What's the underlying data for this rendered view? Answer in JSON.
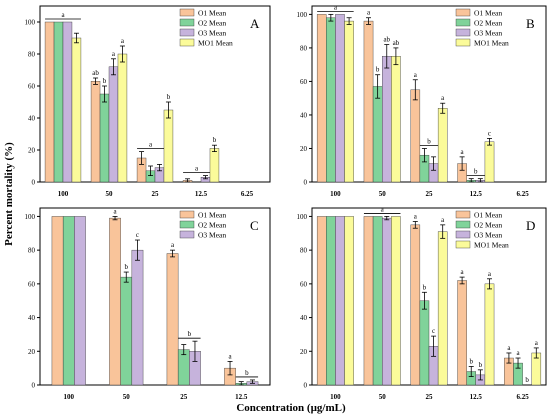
{
  "figure": {
    "ylabel": "Percent mortality (%)",
    "xlabel": "Concentration (µg/mL)"
  },
  "colors": {
    "O1 Mean": "#f9c49a",
    "O2 Mean": "#80d39a",
    "O3 Mean": "#c6b3dc",
    "MO1 Mean": "#fbfb9a"
  },
  "chart_data": [
    {
      "panel": "A",
      "type": "bar",
      "categories": [
        "100",
        "50",
        "25",
        "12.5",
        "6.25"
      ],
      "series": [
        {
          "name": "O1 Mean",
          "values": [
            100,
            63,
            15,
            1,
            0
          ],
          "errors": [
            0,
            2,
            4,
            1,
            0
          ]
        },
        {
          "name": "O2 Mean",
          "values": [
            100,
            55,
            7,
            0,
            0
          ],
          "errors": [
            0,
            5,
            3,
            0,
            0
          ]
        },
        {
          "name": "O3 Mean",
          "values": [
            100,
            72,
            9,
            3,
            0
          ],
          "errors": [
            0,
            5,
            2,
            1,
            0
          ]
        },
        {
          "name": "MO1 Mean",
          "values": [
            90,
            80,
            45,
            21,
            0
          ],
          "errors": [
            3,
            5,
            5,
            2,
            0
          ]
        }
      ],
      "ylim": [
        0,
        110
      ],
      "yticks": [
        0,
        20,
        40,
        60,
        80,
        100
      ],
      "legend": "top-right",
      "annotations": [
        {
          "category": 0,
          "from": 0,
          "to": 3,
          "label": "a"
        },
        {
          "category": 1,
          "series": 0,
          "label": "ab"
        },
        {
          "category": 1,
          "series": 1,
          "label": "b"
        },
        {
          "category": 1,
          "series": 2,
          "label": "a"
        },
        {
          "category": 1,
          "series": 3,
          "label": "a"
        },
        {
          "category": 2,
          "from": 0,
          "to": 2,
          "label": "a"
        },
        {
          "category": 2,
          "series": 3,
          "label": "b"
        },
        {
          "category": 3,
          "from": 0,
          "to": 2,
          "label": "a"
        },
        {
          "category": 3,
          "series": 3,
          "label": "b"
        }
      ]
    },
    {
      "panel": "B",
      "type": "bar",
      "categories": [
        "100",
        "50",
        "25",
        "12.5",
        "6.25"
      ],
      "series": [
        {
          "name": "O1 Mean",
          "values": [
            100,
            96,
            55,
            11,
            0
          ],
          "errors": [
            0,
            2,
            6,
            4,
            0
          ]
        },
        {
          "name": "O2 Mean",
          "values": [
            98,
            57,
            16,
            1,
            0
          ],
          "errors": [
            2,
            7,
            4,
            1,
            0
          ]
        },
        {
          "name": "O3 Mean",
          "values": [
            100,
            75,
            11,
            1,
            0
          ],
          "errors": [
            0,
            7,
            4,
            1,
            0
          ]
        },
        {
          "name": "MO1 Mean",
          "values": [
            96,
            75,
            44,
            24,
            0
          ],
          "errors": [
            2,
            5,
            3,
            2,
            0
          ]
        }
      ],
      "ylim": [
        0,
        105
      ],
      "yticks": [
        0,
        20,
        40,
        60,
        80,
        100
      ],
      "legend": "top-right",
      "annotations": [
        {
          "category": 0,
          "from": 0,
          "to": 3,
          "label": "a"
        },
        {
          "category": 1,
          "series": 0,
          "label": "a"
        },
        {
          "category": 1,
          "series": 1,
          "label": "b"
        },
        {
          "category": 1,
          "series": 2,
          "label": "ab"
        },
        {
          "category": 1,
          "series": 3,
          "label": "ab"
        },
        {
          "category": 2,
          "series": 0,
          "label": "a"
        },
        {
          "category": 2,
          "from": 1,
          "to": 2,
          "label": "b"
        },
        {
          "category": 2,
          "series": 3,
          "label": "a"
        },
        {
          "category": 3,
          "series": 0,
          "label": "a"
        },
        {
          "category": 3,
          "from": 1,
          "to": 2,
          "label": "b"
        },
        {
          "category": 3,
          "series": 3,
          "label": "c"
        }
      ]
    },
    {
      "panel": "C",
      "type": "bar",
      "categories": [
        "100",
        "50",
        "25",
        "12.5"
      ],
      "series": [
        {
          "name": "O1 Mean",
          "values": [
            100,
            99,
            78,
            10
          ],
          "errors": [
            0,
            1,
            2,
            4
          ]
        },
        {
          "name": "O2 Mean",
          "values": [
            100,
            64,
            21,
            1
          ],
          "errors": [
            0,
            3,
            3,
            1
          ]
        },
        {
          "name": "O3 Mean",
          "values": [
            100,
            80,
            20,
            2
          ],
          "errors": [
            0,
            6,
            6,
            1
          ]
        }
      ],
      "ylim": [
        0,
        105
      ],
      "yticks": [
        0,
        20,
        40,
        60,
        80,
        100
      ],
      "legend": "top-right",
      "annotations": [
        {
          "category": 1,
          "series": 0,
          "label": "a"
        },
        {
          "category": 1,
          "series": 1,
          "label": "b"
        },
        {
          "category": 1,
          "series": 2,
          "label": "c"
        },
        {
          "category": 2,
          "series": 0,
          "label": "a"
        },
        {
          "category": 2,
          "from": 1,
          "to": 2,
          "label": "b"
        },
        {
          "category": 3,
          "series": 0,
          "label": "a"
        },
        {
          "category": 3,
          "from": 1,
          "to": 2,
          "label": "b"
        }
      ]
    },
    {
      "panel": "D",
      "type": "bar",
      "categories": [
        "100",
        "50",
        "25",
        "12.5",
        "6.25"
      ],
      "series": [
        {
          "name": "O1 Mean",
          "values": [
            100,
            100,
            95,
            62,
            16
          ],
          "errors": [
            0,
            0,
            2,
            2,
            3
          ]
        },
        {
          "name": "O2 Mean",
          "values": [
            100,
            100,
            50,
            8,
            13
          ],
          "errors": [
            0,
            0,
            5,
            3,
            3
          ]
        },
        {
          "name": "O3 Mean",
          "values": [
            100,
            99,
            23,
            6,
            0
          ],
          "errors": [
            0,
            1,
            6,
            3,
            0
          ]
        },
        {
          "name": "MO1 Mean",
          "values": [
            100,
            100,
            91,
            60,
            19
          ],
          "errors": [
            0,
            0,
            4,
            3,
            3
          ]
        }
      ],
      "ylim": [
        0,
        105
      ],
      "yticks": [
        0,
        20,
        40,
        60,
        80,
        100
      ],
      "legend": "top-right",
      "annotations": [
        {
          "category": 1,
          "from": 0,
          "to": 3,
          "label": "a"
        },
        {
          "category": 2,
          "series": 0,
          "label": "a"
        },
        {
          "category": 2,
          "series": 1,
          "label": "b"
        },
        {
          "category": 2,
          "series": 2,
          "label": "c"
        },
        {
          "category": 2,
          "series": 3,
          "label": "a"
        },
        {
          "category": 3,
          "series": 0,
          "label": "a"
        },
        {
          "category": 3,
          "series": 1,
          "label": "b"
        },
        {
          "category": 3,
          "series": 2,
          "label": "b"
        },
        {
          "category": 3,
          "series": 3,
          "label": "a"
        },
        {
          "category": 4,
          "series": 0,
          "label": "a"
        },
        {
          "category": 4,
          "series": 1,
          "label": "a"
        },
        {
          "category": 4,
          "series": 2,
          "label": "b"
        },
        {
          "category": 4,
          "series": 3,
          "label": "a"
        }
      ]
    }
  ]
}
